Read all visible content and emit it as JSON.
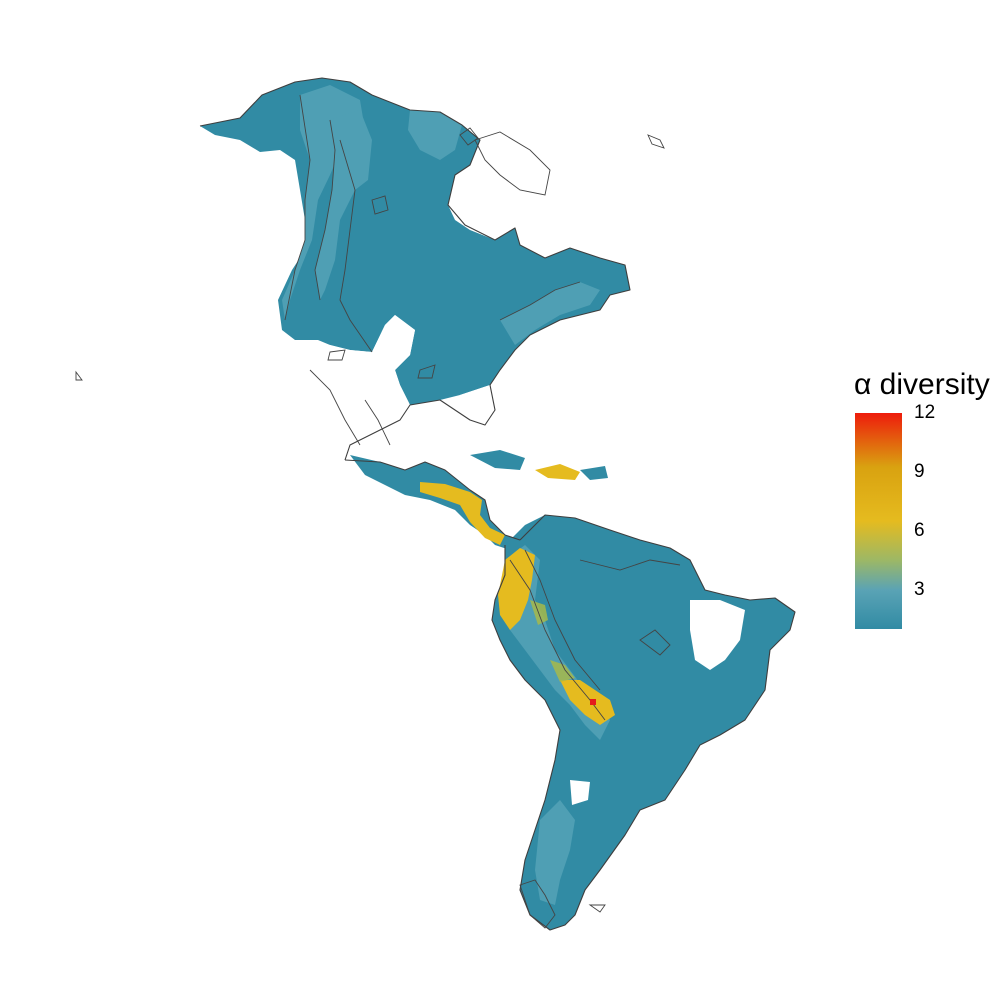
{
  "map": {
    "subject": "alpha diversity across the Americas",
    "colors": {
      "low": "#318ba4",
      "mid_low": "#5aa3b5",
      "mid": "#9db865",
      "mid_high": "#e5bb1f",
      "high_orange": "#d9a210",
      "high_red": "#ee1c0c",
      "outline": "#3e3e3e"
    },
    "peak_marker_value": 12
  },
  "legend": {
    "title": "α diversity",
    "ticks": [
      "12",
      "9",
      "6",
      "3"
    ],
    "tick_values": [
      12,
      9,
      6,
      3
    ],
    "min_value": 1,
    "max_value": 12
  }
}
